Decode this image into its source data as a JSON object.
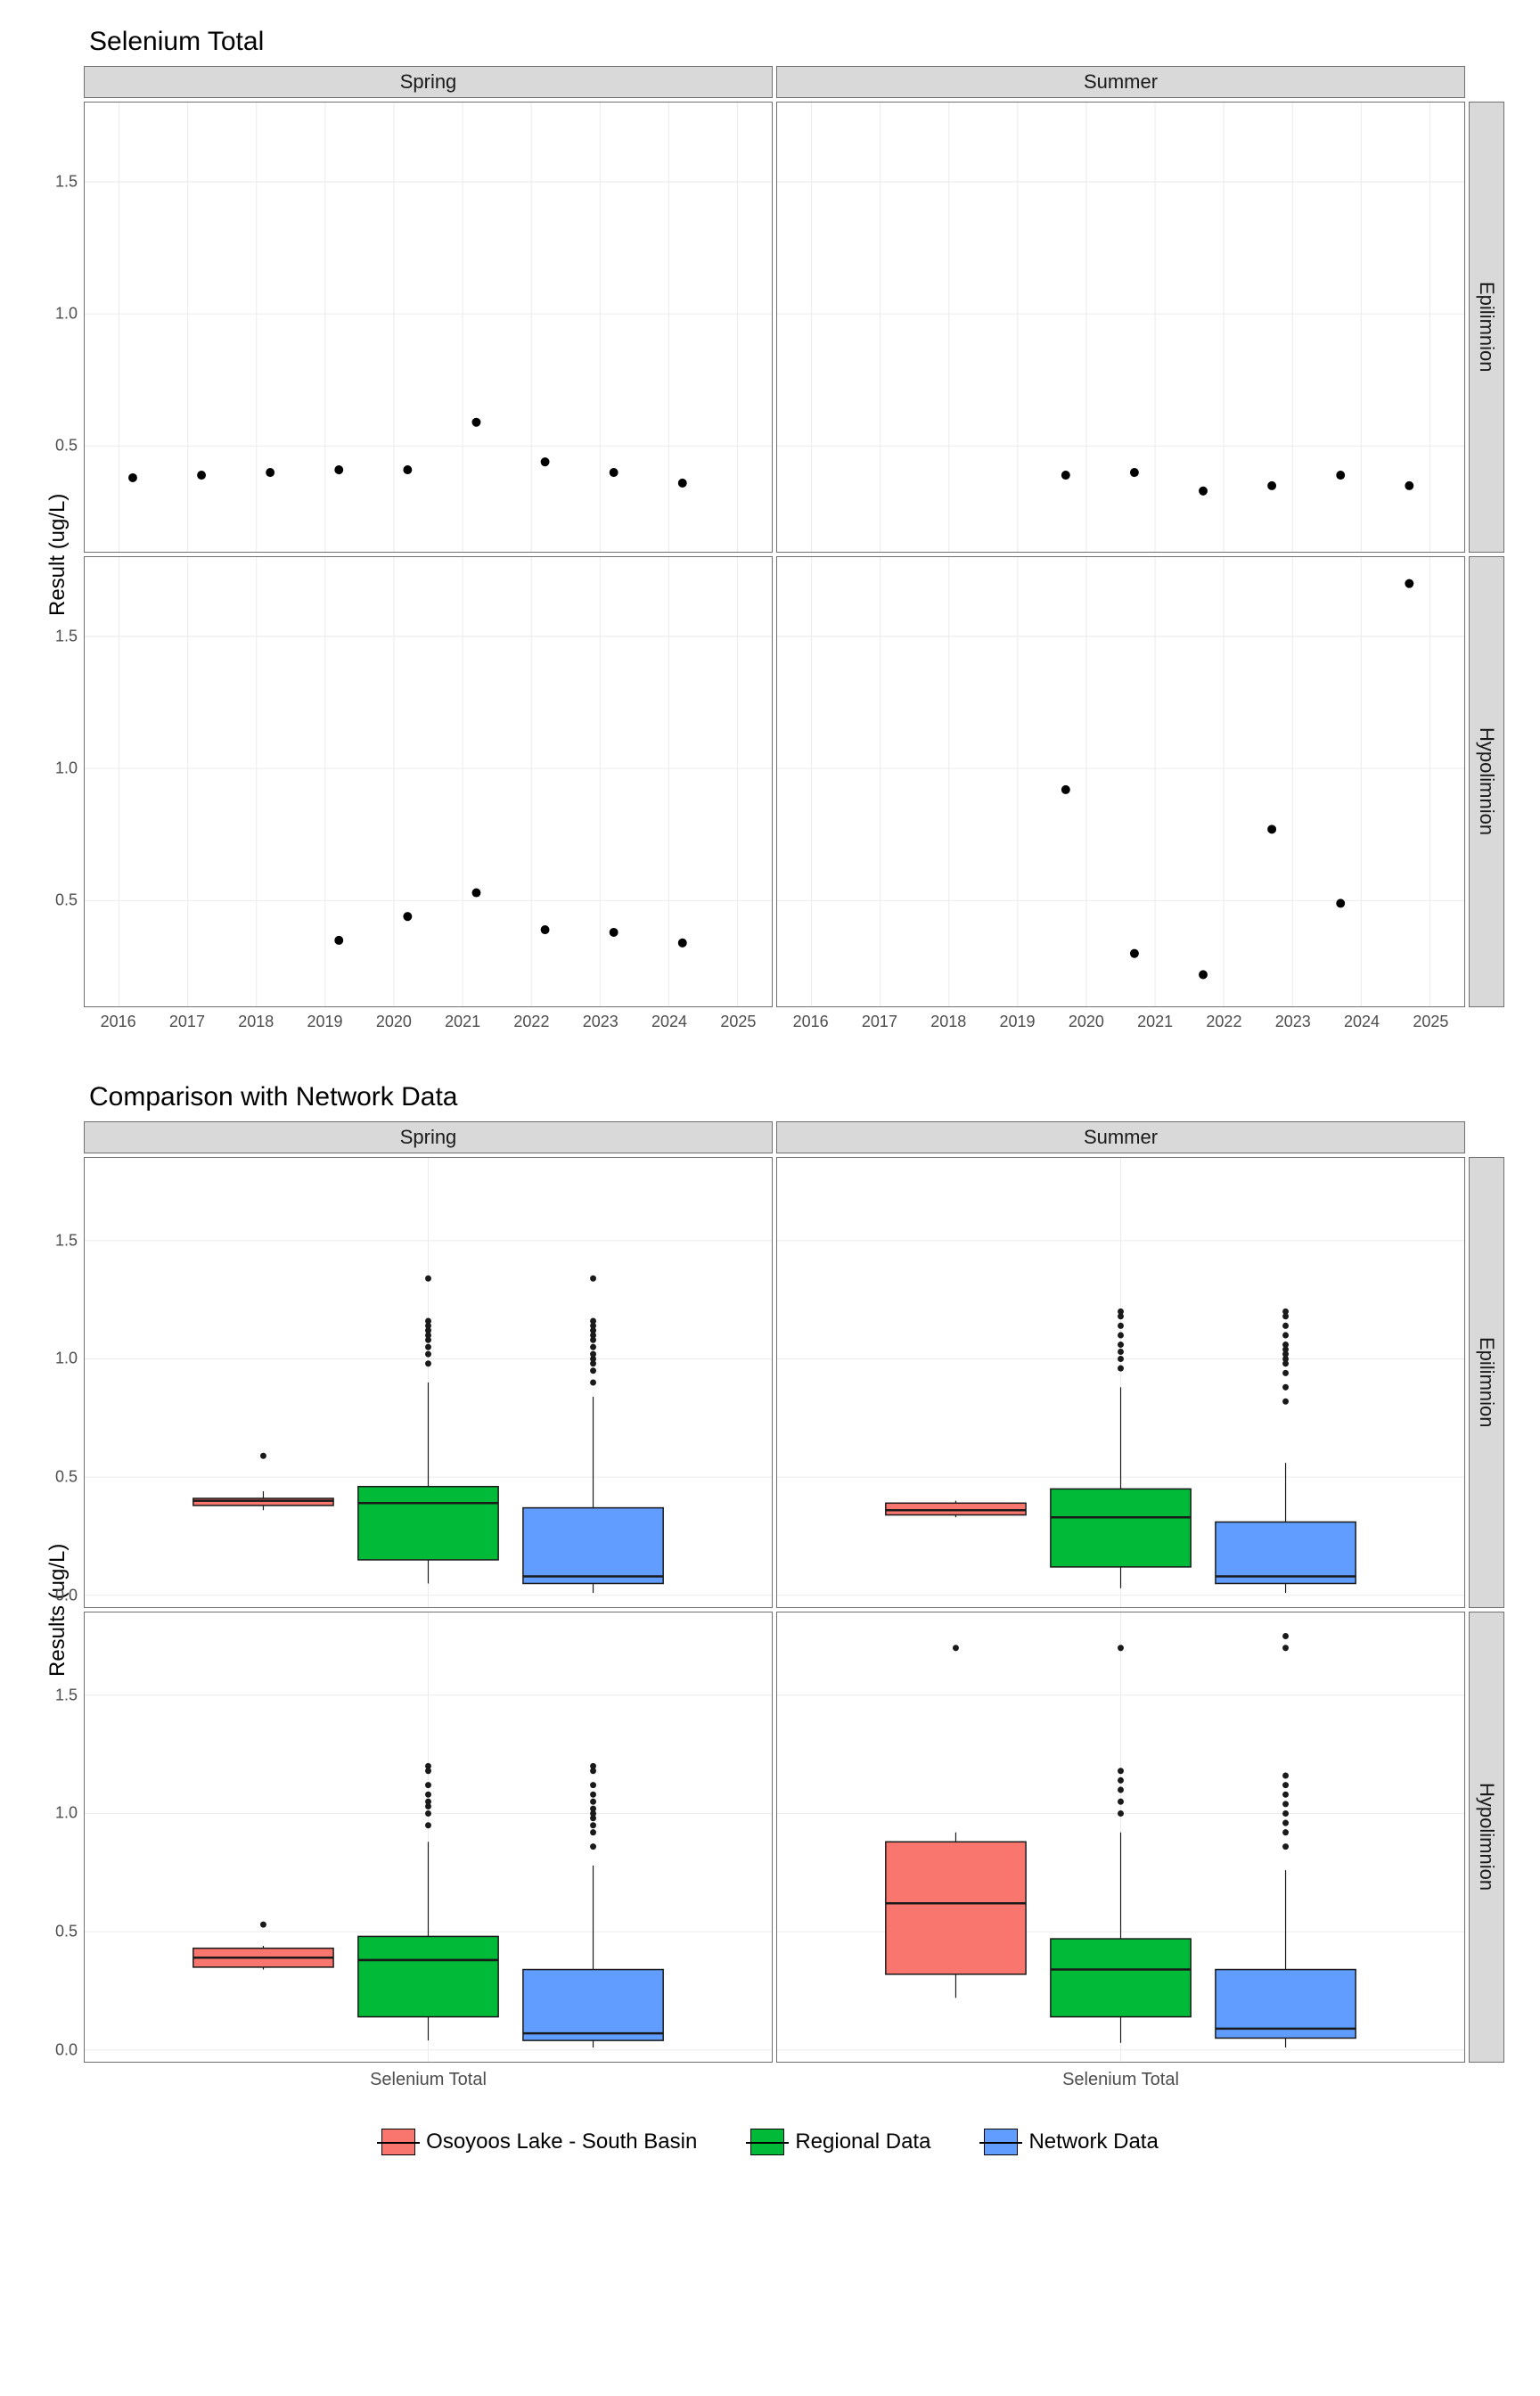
{
  "colors": {
    "osoyoos": "#f8766d",
    "regional": "#00ba38",
    "network": "#619cff",
    "strip_bg": "#d9d9d9",
    "panel_border": "#707070",
    "grid": "#ebebeb",
    "text": "#1a1a1a"
  },
  "chart1": {
    "title": "Selenium Total",
    "y_label": "Result (ug/L)",
    "cols": [
      "Spring",
      "Summer"
    ],
    "rows": [
      "Epilimnion",
      "Hypolimnion"
    ],
    "x_range": [
      2015.5,
      2025.5
    ],
    "y_range": [
      0.1,
      1.8
    ],
    "x_ticks": [
      2016,
      2017,
      2018,
      2019,
      2020,
      2021,
      2022,
      2023,
      2024,
      2025
    ],
    "y_ticks": [
      0.5,
      1.0,
      1.5
    ],
    "y_tick_labels": [
      "0.5",
      "1.0",
      "1.5"
    ],
    "panels": {
      "spring_epi": [
        [
          2016.2,
          0.38
        ],
        [
          2017.2,
          0.39
        ],
        [
          2018.2,
          0.4
        ],
        [
          2019.2,
          0.41
        ],
        [
          2020.2,
          0.41
        ],
        [
          2021.2,
          0.59
        ],
        [
          2022.2,
          0.44
        ],
        [
          2023.2,
          0.4
        ],
        [
          2024.2,
          0.36
        ]
      ],
      "summer_epi": [
        [
          2019.7,
          0.39
        ],
        [
          2020.7,
          0.4
        ],
        [
          2021.7,
          0.33
        ],
        [
          2022.7,
          0.35
        ],
        [
          2023.7,
          0.39
        ],
        [
          2024.7,
          0.35
        ]
      ],
      "spring_hypo": [
        [
          2019.2,
          0.35
        ],
        [
          2020.2,
          0.44
        ],
        [
          2021.2,
          0.53
        ],
        [
          2022.2,
          0.39
        ],
        [
          2023.2,
          0.38
        ],
        [
          2024.2,
          0.34
        ]
      ],
      "summer_hypo": [
        [
          2019.7,
          0.92
        ],
        [
          2020.7,
          0.3
        ],
        [
          2021.7,
          0.22
        ],
        [
          2022.7,
          0.77
        ],
        [
          2023.7,
          0.49
        ],
        [
          2024.7,
          1.7
        ]
      ]
    }
  },
  "chart2": {
    "title": "Comparison with Network Data",
    "y_label": "Results (ug/L)",
    "cols": [
      "Spring",
      "Summer"
    ],
    "rows": [
      "Epilimnion",
      "Hypolimnion"
    ],
    "x_cat": "Selenium Total",
    "y_range": [
      -0.05,
      1.85
    ],
    "y_ticks": [
      0.0,
      0.5,
      1.0,
      1.5
    ],
    "y_tick_labels": [
      "0.0",
      "0.5",
      "1.0",
      "1.5"
    ],
    "panels": {
      "spring_epi": {
        "boxes": [
          {
            "fill": "osoyoos",
            "q1": 0.38,
            "med": 0.4,
            "q3": 0.41,
            "lw": 0.36,
            "uw": 0.44,
            "outliers": [
              0.59
            ]
          },
          {
            "fill": "regional",
            "q1": 0.15,
            "med": 0.39,
            "q3": 0.46,
            "lw": 0.05,
            "uw": 0.9,
            "outliers": [
              0.98,
              1.02,
              1.05,
              1.08,
              1.1,
              1.12,
              1.14,
              1.16,
              1.34
            ]
          },
          {
            "fill": "network",
            "q1": 0.05,
            "med": 0.08,
            "q3": 0.37,
            "lw": 0.01,
            "uw": 0.84,
            "outliers": [
              0.9,
              0.95,
              0.98,
              1.0,
              1.02,
              1.05,
              1.08,
              1.1,
              1.12,
              1.14,
              1.16,
              1.34
            ]
          }
        ]
      },
      "summer_epi": {
        "boxes": [
          {
            "fill": "osoyoos",
            "q1": 0.34,
            "med": 0.36,
            "q3": 0.39,
            "lw": 0.33,
            "uw": 0.4,
            "outliers": []
          },
          {
            "fill": "regional",
            "q1": 0.12,
            "med": 0.33,
            "q3": 0.45,
            "lw": 0.03,
            "uw": 0.88,
            "outliers": [
              0.96,
              1.0,
              1.03,
              1.06,
              1.1,
              1.14,
              1.18,
              1.2
            ]
          },
          {
            "fill": "network",
            "q1": 0.05,
            "med": 0.08,
            "q3": 0.31,
            "lw": 0.01,
            "uw": 0.56,
            "outliers": [
              0.82,
              0.88,
              0.94,
              0.98,
              1.0,
              1.02,
              1.04,
              1.06,
              1.1,
              1.14,
              1.18,
              1.2
            ]
          }
        ]
      },
      "spring_hypo": {
        "boxes": [
          {
            "fill": "osoyoos",
            "q1": 0.35,
            "med": 0.39,
            "q3": 0.43,
            "lw": 0.34,
            "uw": 0.44,
            "outliers": [
              0.53
            ]
          },
          {
            "fill": "regional",
            "q1": 0.14,
            "med": 0.38,
            "q3": 0.48,
            "lw": 0.04,
            "uw": 0.88,
            "outliers": [
              0.95,
              1.0,
              1.03,
              1.05,
              1.08,
              1.12,
              1.18,
              1.2
            ]
          },
          {
            "fill": "network",
            "q1": 0.04,
            "med": 0.07,
            "q3": 0.34,
            "lw": 0.01,
            "uw": 0.78,
            "outliers": [
              0.86,
              0.92,
              0.95,
              0.98,
              1.0,
              1.02,
              1.05,
              1.08,
              1.12,
              1.18,
              1.2
            ]
          }
        ]
      },
      "summer_hypo": {
        "boxes": [
          {
            "fill": "osoyoos",
            "q1": 0.32,
            "med": 0.62,
            "q3": 0.88,
            "lw": 0.22,
            "uw": 0.92,
            "outliers": [
              1.7
            ]
          },
          {
            "fill": "regional",
            "q1": 0.14,
            "med": 0.34,
            "q3": 0.47,
            "lw": 0.03,
            "uw": 0.92,
            "outliers": [
              1.0,
              1.05,
              1.1,
              1.14,
              1.18,
              1.7
            ]
          },
          {
            "fill": "network",
            "q1": 0.05,
            "med": 0.09,
            "q3": 0.34,
            "lw": 0.01,
            "uw": 0.76,
            "outliers": [
              0.86,
              0.92,
              0.96,
              1.0,
              1.04,
              1.08,
              1.12,
              1.16,
              1.7,
              1.75
            ]
          }
        ]
      }
    }
  },
  "legend": {
    "items": [
      {
        "key": "osoyoos",
        "label": "Osoyoos Lake - South Basin"
      },
      {
        "key": "regional",
        "label": "Regional Data"
      },
      {
        "key": "network",
        "label": "Network Data"
      }
    ]
  }
}
